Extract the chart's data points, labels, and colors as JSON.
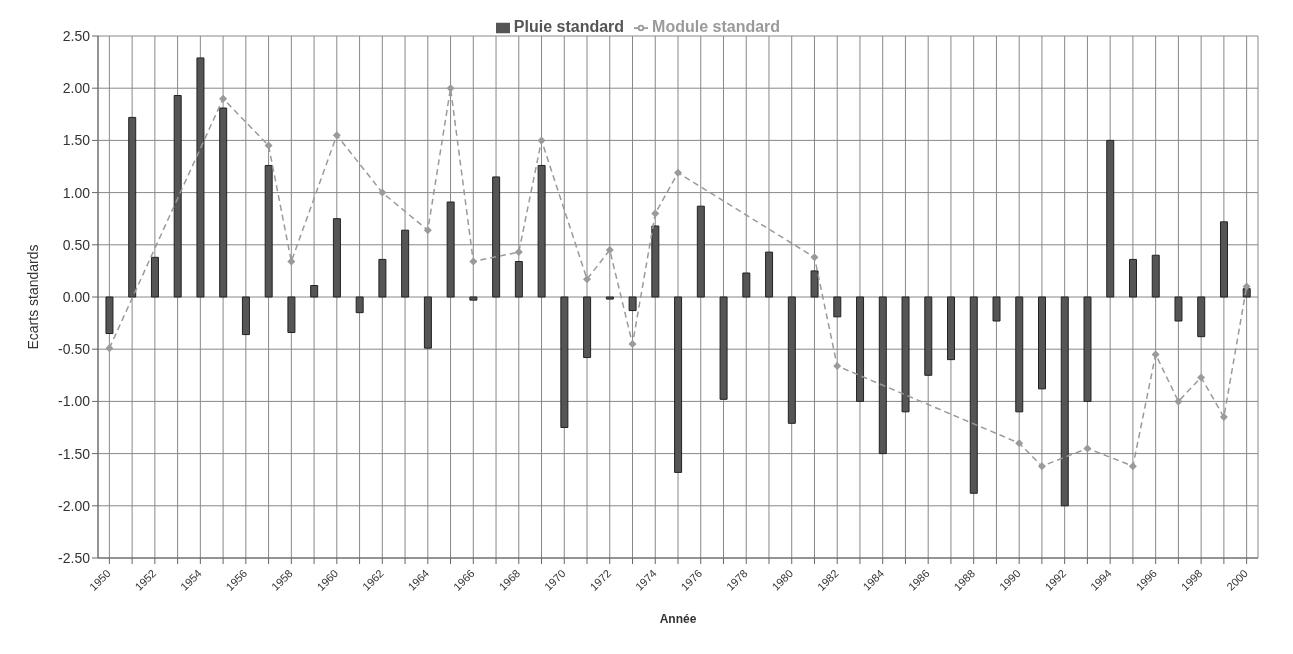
{
  "chart_data": {
    "type": "bar",
    "xlabel": "Année",
    "ylabel": "Ecarts standards",
    "categories": [
      "1950",
      null,
      "1952",
      null,
      "1954",
      null,
      "1956",
      null,
      "1958",
      null,
      "1960",
      null,
      "1962",
      null,
      "1964",
      null,
      "1966",
      null,
      "1968",
      null,
      "1970",
      null,
      "1972",
      null,
      "1974",
      null,
      "1976",
      null,
      "1978",
      null,
      "1980",
      null,
      "1982",
      null,
      "1984",
      null,
      "1986",
      null,
      "1988",
      null,
      "1990",
      null,
      "1992",
      null,
      "1994",
      null,
      "1996",
      null,
      "1998",
      null,
      "2000"
    ],
    "series": [
      {
        "name": "Pluie standard",
        "color": "#555555",
        "values": [
          -0.35,
          1.72,
          0.38,
          1.93,
          2.29,
          1.81,
          -0.36,
          1.26,
          -0.34,
          0.11,
          0.75,
          -0.15,
          0.36,
          0.64,
          -0.49,
          0.91,
          -0.03,
          1.15,
          0.34,
          1.26,
          -1.25,
          -0.58,
          -0.02,
          -0.13,
          0.68,
          -1.68,
          0.87,
          -0.98,
          0.23,
          0.43,
          -1.21,
          0.25,
          -0.19,
          -1.0,
          -1.5,
          -1.1,
          -0.75,
          -0.6,
          -1.88,
          -0.23,
          -1.1,
          -0.88,
          -2.0,
          -1.0,
          1.5,
          0.36,
          0.4,
          -0.23,
          -0.38,
          0.72,
          0.08
        ]
      },
      {
        "name": "Module standard",
        "type": "line",
        "color": "#9a9a9a",
        "values": [
          -0.49,
          null,
          null,
          null,
          null,
          1.9,
          null,
          1.45,
          0.34,
          null,
          1.55,
          null,
          1.0,
          null,
          0.64,
          2.0,
          0.34,
          null,
          0.43,
          1.5,
          null,
          0.17,
          0.45,
          -0.45,
          0.8,
          1.19,
          null,
          null,
          null,
          null,
          null,
          0.38,
          -0.66,
          null,
          null,
          null,
          null,
          null,
          null,
          null,
          -1.4,
          -1.62,
          null,
          -1.45,
          null,
          -1.62,
          -0.55,
          -1.0,
          -0.77,
          -1.15,
          0.1
        ]
      }
    ],
    "ylim": [
      -2.5,
      2.5
    ],
    "yticks": [
      {
        "value": -2.5,
        "label": "-2.50"
      },
      {
        "value": -2,
        "label": "-2.00"
      },
      {
        "value": -1.5,
        "label": "-1.50"
      },
      {
        "value": -1,
        "label": "-1.00"
      },
      {
        "value": -0.5,
        "label": "-0.50"
      },
      {
        "value": 0,
        "label": "0.00"
      },
      {
        "value": 0.5,
        "label": "0.50"
      },
      {
        "value": 1,
        "label": "1.00"
      },
      {
        "value": 1.5,
        "label": "1.50"
      },
      {
        "value": 2,
        "label": "2.00"
      },
      {
        "value": 2.5,
        "label": "2.50"
      }
    ],
    "grid": true,
    "legend": "top",
    "marker": "diamond",
    "line_style": "dashed"
  }
}
